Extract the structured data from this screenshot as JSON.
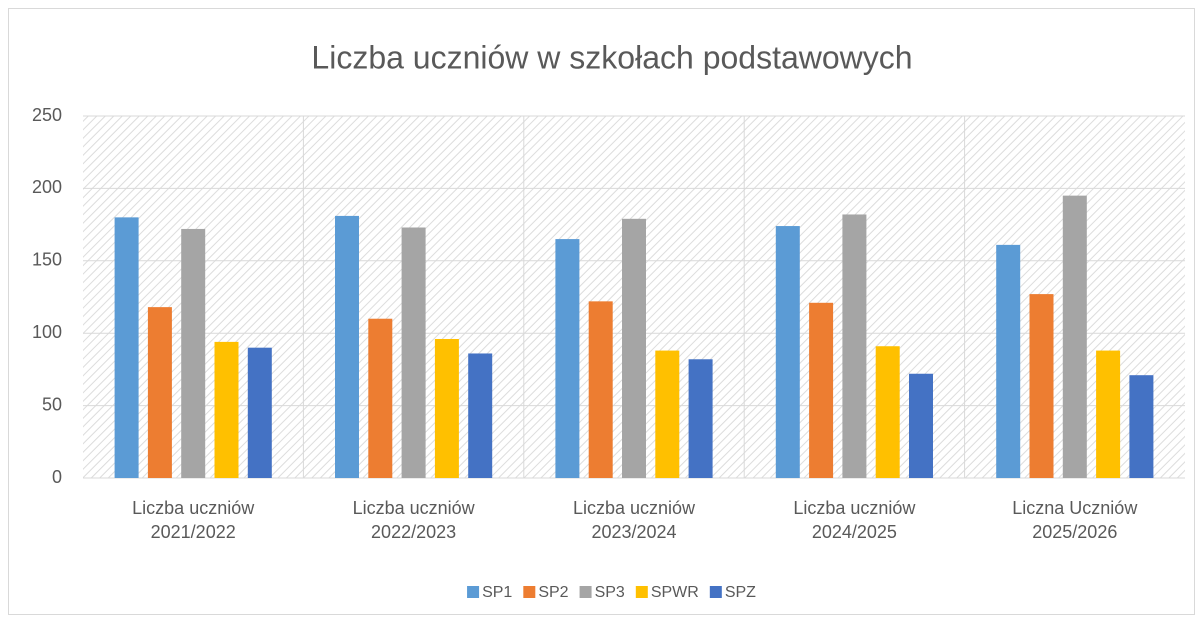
{
  "chart_data": {
    "type": "bar",
    "title": "Liczba uczniów w szkołach podstawowych",
    "categories": [
      "Liczba uczniów 2021/2022",
      "Liczba uczniów 2022/2023",
      "Liczba uczniów 2023/2024",
      "Liczba uczniów 2024/2025",
      "Liczna Uczniów 2025/2026"
    ],
    "series": [
      {
        "name": "SP1",
        "color": "#5b9bd5",
        "values": [
          180,
          181,
          165,
          174,
          161
        ]
      },
      {
        "name": "SP2",
        "color": "#ed7d31",
        "values": [
          118,
          110,
          122,
          121,
          127
        ]
      },
      {
        "name": "SP3",
        "color": "#a5a5a5",
        "values": [
          172,
          173,
          179,
          182,
          195
        ]
      },
      {
        "name": "SPWR",
        "color": "#ffc000",
        "values": [
          94,
          96,
          88,
          91,
          88
        ]
      },
      {
        "name": "SPZ",
        "color": "#4472c4",
        "values": [
          90,
          86,
          82,
          72,
          71
        ]
      }
    ],
    "ylim": [
      0,
      250
    ],
    "yticks": [
      0,
      50,
      100,
      150,
      200,
      250
    ],
    "grid": true,
    "legend": "bottom"
  }
}
